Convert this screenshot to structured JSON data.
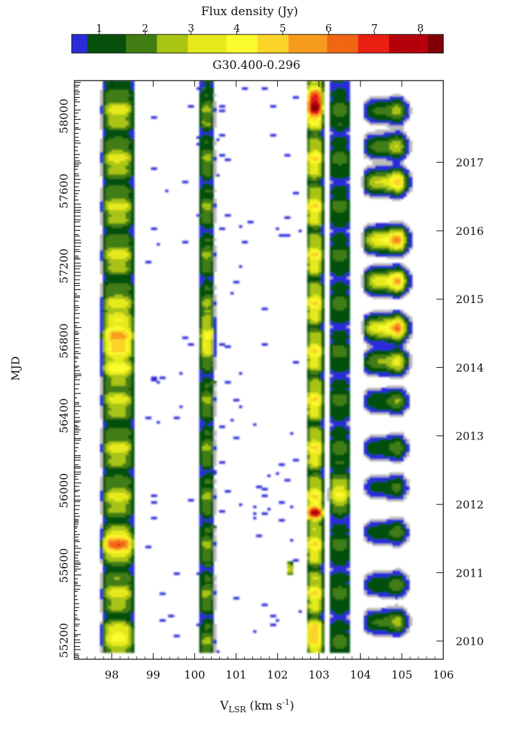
{
  "chart_data": {
    "type": "heatmap",
    "title": "G30.400-0.296",
    "colorbar": {
      "label": "Flux density (Jy)",
      "range": [
        0.4,
        8.5
      ],
      "ticks": [
        "1",
        "2",
        "3",
        "4",
        "5",
        "6",
        "7",
        "8"
      ],
      "tick_values": [
        1,
        2,
        3,
        4,
        5,
        6,
        7,
        8
      ],
      "colormap": [
        "#ffffff",
        "#bcbcbc",
        "#2b2bdc",
        "#064f0a",
        "#3f7d13",
        "#a9c413",
        "#e6ea1c",
        "#fbfb2e",
        "#fbd42a",
        "#f79b1c",
        "#f26512",
        "#ea1f12",
        "#b5000c",
        "#800006"
      ]
    },
    "xaxis": {
      "label_main": "V",
      "label_sub": "LSR",
      "label_unit_pre": " (km s",
      "label_unit_sup": "-1",
      "label_unit_post": ")",
      "range": [
        97.1,
        106.0
      ],
      "ticks": [
        "98",
        "99",
        "100",
        "101",
        "102",
        "103",
        "104",
        "105",
        "106"
      ],
      "tick_values": [
        98,
        99,
        100,
        101,
        102,
        103,
        104,
        105,
        106
      ]
    },
    "yaxis_left": {
      "label": "MJD",
      "range": [
        55100,
        58190
      ],
      "ticks": [
        "55200",
        "55600",
        "56000",
        "56400",
        "56800",
        "57200",
        "57600",
        "58000"
      ],
      "tick_values": [
        55200,
        55600,
        56000,
        56400,
        56800,
        57200,
        57600,
        58000
      ]
    },
    "yaxis_right": {
      "label": "",
      "ticks": [
        "2010",
        "2011",
        "2012",
        "2013",
        "2014",
        "2015",
        "2016",
        "2017"
      ],
      "tick_values": [
        55197,
        55562,
        55927,
        56293,
        56658,
        57023,
        57388,
        57754
      ]
    },
    "velocity_components": [
      {
        "v_center": 98.15,
        "v_halfwidth": 0.42,
        "mjd_start": 55130,
        "mjd_end": 58190,
        "peak_jy": 6.2,
        "peak_mjd": 56835
      },
      {
        "v_center": 100.3,
        "v_halfwidth": 0.2,
        "mjd_start": 55130,
        "mjd_end": 58190,
        "peak_jy": 4.4,
        "peak_mjd": 56830
      },
      {
        "v_center": 102.9,
        "v_halfwidth": 0.22,
        "mjd_start": 55130,
        "mjd_end": 58190,
        "peak_jy": 8.3,
        "peak_mjd": 58080
      },
      {
        "v_center": 103.5,
        "v_halfwidth": 0.28,
        "mjd_start": 55130,
        "mjd_end": 58190,
        "peak_jy": 3.6,
        "peak_mjd": 56000
      },
      {
        "v_center": 104.5,
        "v_halfwidth": 0.38,
        "mjd_start": 55150,
        "mjd_end": 58190,
        "peak_jy": 4.0,
        "peak_mjd": 57640
      },
      {
        "v_center": 104.95,
        "v_halfwidth": 0.2,
        "mjd_start": 56640,
        "mjd_end": 58190,
        "peak_jy": 7.0,
        "peak_mjd": 57330
      },
      {
        "v_center": 102.3,
        "v_halfwidth": 0.06,
        "mjd_start": 55550,
        "mjd_end": 55620,
        "peak_jy": 3.5,
        "peak_mjd": 55585
      }
    ],
    "flares_104_105": [
      {
        "mjd_center": 58030,
        "peak_jy": 3.0
      },
      {
        "mjd_center": 57840,
        "peak_jy": 3.4
      },
      {
        "mjd_center": 57650,
        "peak_jy": 5.6
      },
      {
        "mjd_center": 57340,
        "peak_jy": 6.8
      },
      {
        "mjd_center": 57120,
        "peak_jy": 6.2
      },
      {
        "mjd_center": 56870,
        "peak_jy": 6.9
      },
      {
        "mjd_center": 56690,
        "peak_jy": 4.2
      },
      {
        "mjd_center": 56480,
        "peak_jy": 2.6
      },
      {
        "mjd_center": 56230,
        "peak_jy": 2.4
      },
      {
        "mjd_center": 56020,
        "peak_jy": 2.0
      },
      {
        "mjd_center": 55780,
        "peak_jy": 2.3
      },
      {
        "mjd_center": 55500,
        "peak_jy": 2.4
      },
      {
        "mjd_center": 55300,
        "peak_jy": 3.0
      }
    ],
    "grid": false,
    "legend": "colorbar-top"
  }
}
